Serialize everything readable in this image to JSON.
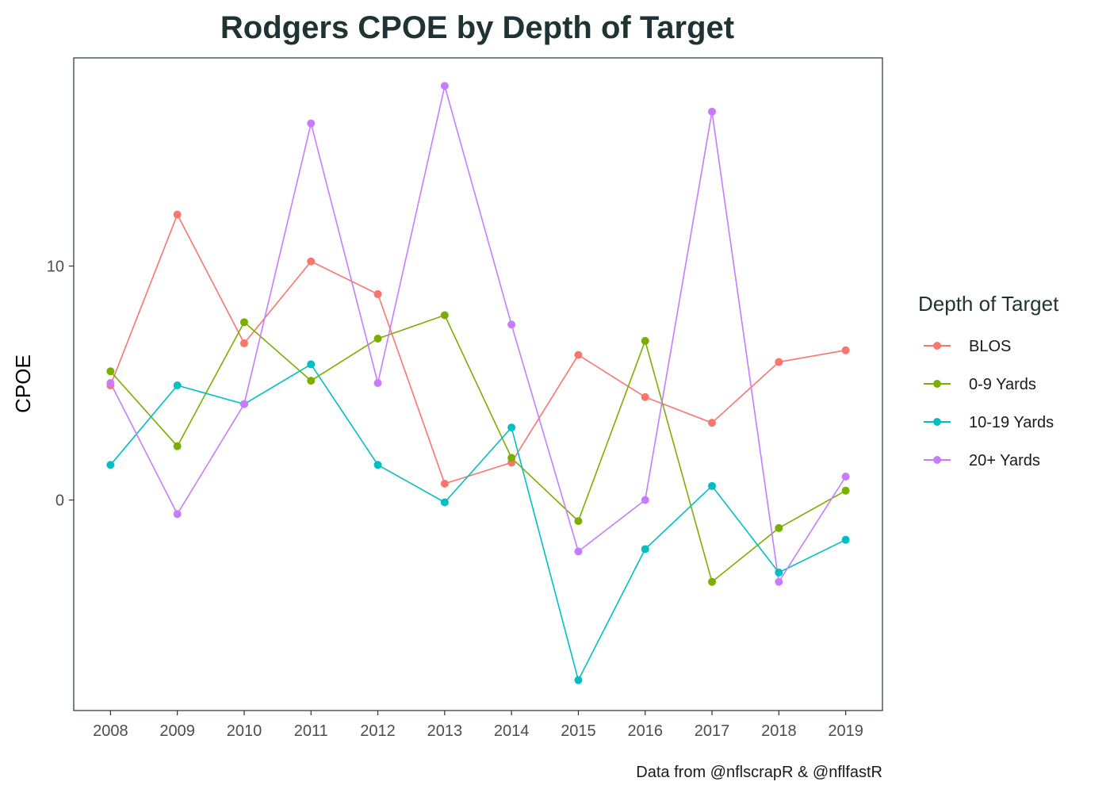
{
  "chart_data": {
    "type": "line",
    "title": "Rodgers CPOE by Depth of Target",
    "xlabel": "",
    "ylabel": "CPOE",
    "caption": "Data from @nflscrapR & @nflfastR",
    "x": [
      2008,
      2009,
      2010,
      2011,
      2012,
      2013,
      2014,
      2015,
      2016,
      2017,
      2018,
      2019
    ],
    "x_tick_labels": [
      "2008",
      "2009",
      "2010",
      "2011",
      "2012",
      "2013",
      "2014",
      "2015",
      "2016",
      "2017",
      "2018",
      "2019"
    ],
    "y_ticks": [
      0,
      10
    ],
    "y_tick_labels": [
      "0",
      "10"
    ],
    "xlim": [
      2007.45,
      2019.55
    ],
    "ylim": [
      -9.0,
      18.9
    ],
    "grid": false,
    "legend": {
      "title": "Depth of Target",
      "position": "right"
    },
    "series": [
      {
        "name": "BLOS",
        "color": "#F8766D",
        "values": [
          4.9,
          12.2,
          6.7,
          10.2,
          8.8,
          0.7,
          1.6,
          6.2,
          4.4,
          3.3,
          5.9,
          6.4
        ]
      },
      {
        "name": "0-9 Yards",
        "color": "#7CAE00",
        "values": [
          5.5,
          2.3,
          7.6,
          5.1,
          6.9,
          7.9,
          1.8,
          -0.9,
          6.8,
          -3.5,
          -1.2,
          0.4
        ]
      },
      {
        "name": "10-19 Yards",
        "color": "#00BFC4",
        "values": [
          1.5,
          4.9,
          4.1,
          5.8,
          1.5,
          -0.1,
          3.1,
          -7.7,
          -2.1,
          0.6,
          -3.1,
          -1.7
        ]
      },
      {
        "name": "20+ Yards",
        "color": "#C77CFF",
        "values": [
          5.0,
          -0.6,
          4.1,
          16.1,
          5.0,
          17.7,
          7.5,
          -2.2,
          0.0,
          16.6,
          -3.5,
          1.0
        ]
      }
    ]
  }
}
